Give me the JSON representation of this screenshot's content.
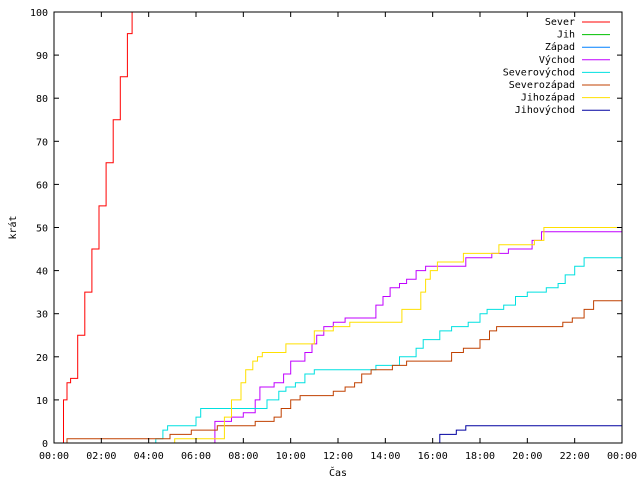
{
  "chart_data": {
    "type": "line",
    "xlabel": "Čas",
    "ylabel": "krát",
    "xlim": [
      0,
      24
    ],
    "ylim": [
      0,
      100
    ],
    "grid": false,
    "legend_position": "top-right",
    "x_ticks": [
      {
        "x": 0,
        "label": "00:00"
      },
      {
        "x": 2,
        "label": "02:00"
      },
      {
        "x": 4,
        "label": "04:00"
      },
      {
        "x": 6,
        "label": "06:00"
      },
      {
        "x": 8,
        "label": "08:00"
      },
      {
        "x": 10,
        "label": "10:00"
      },
      {
        "x": 12,
        "label": "12:00"
      },
      {
        "x": 14,
        "label": "14:00"
      },
      {
        "x": 16,
        "label": "16:00"
      },
      {
        "x": 18,
        "label": "18:00"
      },
      {
        "x": 20,
        "label": "20:00"
      },
      {
        "x": 22,
        "label": "22:00"
      },
      {
        "x": 24,
        "label": "00:00"
      }
    ],
    "y_ticks": [
      {
        "y": 0,
        "label": "0"
      },
      {
        "y": 10,
        "label": "10"
      },
      {
        "y": 20,
        "label": "20"
      },
      {
        "y": 30,
        "label": "30"
      },
      {
        "y": 40,
        "label": "40"
      },
      {
        "y": 50,
        "label": "50"
      },
      {
        "y": 60,
        "label": "60"
      },
      {
        "y": 70,
        "label": "70"
      },
      {
        "y": 80,
        "label": "80"
      },
      {
        "y": 90,
        "label": "90"
      },
      {
        "y": 100,
        "label": "100"
      }
    ],
    "series": [
      {
        "name": "Sever",
        "color": "#ff0000",
        "points": [
          [
            0,
            0
          ],
          [
            0.4,
            10
          ],
          [
            0.55,
            14
          ],
          [
            0.7,
            15
          ],
          [
            1.0,
            25
          ],
          [
            1.3,
            35
          ],
          [
            1.6,
            45
          ],
          [
            1.9,
            55
          ],
          [
            2.2,
            65
          ],
          [
            2.5,
            75
          ],
          [
            2.8,
            85
          ],
          [
            3.1,
            95
          ],
          [
            3.3,
            100
          ]
        ]
      },
      {
        "name": "Jih",
        "color": "#00c000",
        "points": []
      },
      {
        "name": "Západ",
        "color": "#0080ff",
        "points": []
      },
      {
        "name": "Východ",
        "color": "#c000ff",
        "points": [
          [
            0,
            0
          ],
          [
            6.7,
            0
          ],
          [
            6.8,
            5
          ],
          [
            7.5,
            6
          ],
          [
            8.0,
            7
          ],
          [
            8.5,
            10
          ],
          [
            8.7,
            13
          ],
          [
            9.3,
            14
          ],
          [
            9.7,
            16
          ],
          [
            10.0,
            19
          ],
          [
            10.6,
            21
          ],
          [
            10.9,
            23
          ],
          [
            11.1,
            25
          ],
          [
            11.4,
            27
          ],
          [
            11.8,
            28
          ],
          [
            12.3,
            29
          ],
          [
            13.6,
            32
          ],
          [
            13.9,
            34
          ],
          [
            14.2,
            36
          ],
          [
            14.6,
            37
          ],
          [
            14.9,
            38
          ],
          [
            15.3,
            40
          ],
          [
            15.7,
            41
          ],
          [
            17.4,
            43
          ],
          [
            18.5,
            44
          ],
          [
            19.2,
            45
          ],
          [
            20.2,
            47
          ],
          [
            20.6,
            49
          ],
          [
            24,
            49
          ]
        ]
      },
      {
        "name": "Severovýchod",
        "color": "#00e0e0",
        "points": [
          [
            0,
            0
          ],
          [
            4.1,
            0
          ],
          [
            4.3,
            1
          ],
          [
            4.6,
            3
          ],
          [
            4.8,
            4
          ],
          [
            6.0,
            6
          ],
          [
            6.2,
            8
          ],
          [
            8.6,
            8
          ],
          [
            9.0,
            10
          ],
          [
            9.5,
            12
          ],
          [
            9.8,
            13
          ],
          [
            10.2,
            14
          ],
          [
            10.6,
            16
          ],
          [
            11.0,
            17
          ],
          [
            13.0,
            17
          ],
          [
            13.6,
            18
          ],
          [
            14.6,
            20
          ],
          [
            15.3,
            22
          ],
          [
            15.6,
            24
          ],
          [
            16.3,
            26
          ],
          [
            16.8,
            27
          ],
          [
            17.5,
            28
          ],
          [
            18.0,
            30
          ],
          [
            18.3,
            31
          ],
          [
            19.0,
            32
          ],
          [
            19.5,
            34
          ],
          [
            20.0,
            35
          ],
          [
            20.8,
            36
          ],
          [
            21.3,
            37
          ],
          [
            21.6,
            39
          ],
          [
            22.0,
            41
          ],
          [
            22.4,
            43
          ],
          [
            24,
            43
          ]
        ]
      },
      {
        "name": "Severozápad",
        "color": "#c04000",
        "points": [
          [
            0,
            0
          ],
          [
            0.55,
            1
          ],
          [
            4.0,
            1
          ],
          [
            4.9,
            2
          ],
          [
            5.8,
            3
          ],
          [
            6.9,
            4
          ],
          [
            8.5,
            5
          ],
          [
            9.3,
            6
          ],
          [
            9.6,
            8
          ],
          [
            10.0,
            10
          ],
          [
            10.4,
            11
          ],
          [
            11.8,
            12
          ],
          [
            12.3,
            13
          ],
          [
            12.7,
            14
          ],
          [
            13.0,
            16
          ],
          [
            13.4,
            17
          ],
          [
            14.3,
            18
          ],
          [
            14.9,
            19
          ],
          [
            16.8,
            21
          ],
          [
            17.3,
            22
          ],
          [
            18.0,
            24
          ],
          [
            18.4,
            26
          ],
          [
            18.7,
            27
          ],
          [
            21.5,
            28
          ],
          [
            21.9,
            29
          ],
          [
            22.4,
            31
          ],
          [
            22.8,
            33
          ],
          [
            24,
            33
          ]
        ]
      },
      {
        "name": "Jihozápad",
        "color": "#ffe000",
        "points": [
          [
            0,
            0
          ],
          [
            4.9,
            0
          ],
          [
            5.1,
            1
          ],
          [
            6.7,
            1
          ],
          [
            7.2,
            6
          ],
          [
            7.5,
            10
          ],
          [
            7.9,
            14
          ],
          [
            8.1,
            17
          ],
          [
            8.4,
            19
          ],
          [
            8.6,
            20
          ],
          [
            8.8,
            21
          ],
          [
            9.8,
            23
          ],
          [
            11.0,
            26
          ],
          [
            11.8,
            27
          ],
          [
            12.5,
            28
          ],
          [
            14.7,
            31
          ],
          [
            15.5,
            35
          ],
          [
            15.7,
            38
          ],
          [
            15.9,
            40
          ],
          [
            16.2,
            42
          ],
          [
            17.3,
            44
          ],
          [
            18.8,
            46
          ],
          [
            20.3,
            47
          ],
          [
            20.7,
            50
          ],
          [
            24,
            50
          ]
        ]
      },
      {
        "name": "Jihovýchod",
        "color": "#0000a0",
        "points": [
          [
            0,
            0
          ],
          [
            16.2,
            0
          ],
          [
            16.3,
            2
          ],
          [
            17.0,
            3
          ],
          [
            17.4,
            4
          ],
          [
            24,
            4
          ]
        ]
      }
    ]
  }
}
